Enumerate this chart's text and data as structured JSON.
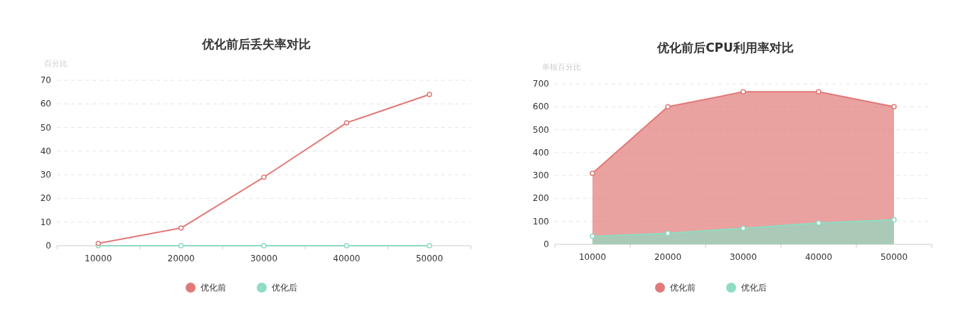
{
  "chart_data": [
    {
      "type": "line",
      "title": "优化前后丢失率对比",
      "ylabel": "百分比",
      "categories": [
        "10000",
        "20000",
        "30000",
        "40000",
        "50000"
      ],
      "series": [
        {
          "name": "优化前",
          "color": "#e07a78",
          "values": [
            1,
            7.5,
            29,
            52,
            64
          ]
        },
        {
          "name": "优化后",
          "color": "#8fdcc0",
          "values": [
            0,
            0,
            0,
            0,
            0
          ]
        }
      ],
      "ylim": [
        0,
        70
      ],
      "yticks": [
        0,
        10,
        20,
        30,
        40,
        50,
        60,
        70
      ],
      "grid": "y",
      "legend": "bottom",
      "marker": "circle",
      "line_style": "solid"
    },
    {
      "type": "area",
      "title": "优化前后CPU利用率对比",
      "ylabel": "单核百分比",
      "categories": [
        "10000",
        "20000",
        "30000",
        "40000",
        "50000"
      ],
      "series": [
        {
          "name": "优化前",
          "color": "#e07a78",
          "values": [
            310,
            600,
            665,
            665,
            600
          ]
        },
        {
          "name": "优化后",
          "color": "#8fdcc0",
          "values": [
            35,
            48,
            70,
            93,
            107
          ]
        }
      ],
      "ylim": [
        0,
        700
      ],
      "yticks": [
        0,
        100,
        200,
        300,
        400,
        500,
        600,
        700
      ],
      "grid": "y",
      "legend": "bottom",
      "marker": "circle",
      "line_style": "solid"
    }
  ]
}
